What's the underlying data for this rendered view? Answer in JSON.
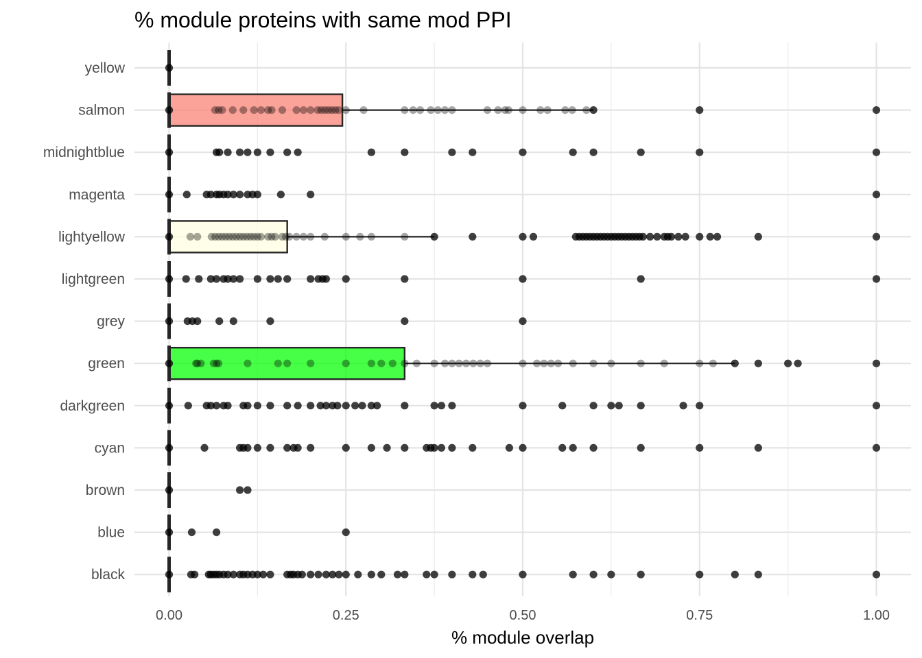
{
  "chart_data": {
    "type": "boxplot",
    "title": "% module proteins with same mod PPI",
    "xlabel": "% module overlap",
    "ylabel": "",
    "xlim": [
      0,
      1
    ],
    "x_ticks": [
      0,
      0.25,
      0.5,
      0.75,
      1
    ],
    "x_tick_labels": [
      "0.00",
      "0.25",
      "0.50",
      "0.75",
      "1.00"
    ],
    "grid": true,
    "categories_top_to_bottom": [
      "yellow",
      "salmon",
      "midnightblue",
      "magenta",
      "lightyellow",
      "lightgreen",
      "grey",
      "green",
      "darkgreen",
      "cyan",
      "brown",
      "blue",
      "black"
    ],
    "series": [
      {
        "name": "yellow",
        "fill": "#ffff00",
        "box": {
          "q1": 0,
          "median": 0,
          "q3": 0,
          "whisker_low": 0,
          "whisker_high": 0
        },
        "points": [
          0
        ]
      },
      {
        "name": "salmon",
        "fill": "#fa8072",
        "box": {
          "q1": 0,
          "median": 0,
          "q3": 0.245,
          "whisker_low": 0,
          "whisker_high": 0.6
        },
        "points": [
          0,
          0.065,
          0.07,
          0.075,
          0.09,
          0.105,
          0.12,
          0.13,
          0.14,
          0.145,
          0.16,
          0.18,
          0.19,
          0.2,
          0.21,
          0.215,
          0.22,
          0.225,
          0.23,
          0.235,
          0.24,
          0.25,
          0.275,
          0.333,
          0.345,
          0.355,
          0.37,
          0.38,
          0.39,
          0.4,
          0.45,
          0.465,
          0.475,
          0.48,
          0.5,
          0.525,
          0.535,
          0.56,
          0.57,
          0.59,
          0.6,
          0.75,
          1.0
        ]
      },
      {
        "name": "midnightblue",
        "fill": "#191970",
        "box": {
          "q1": 0,
          "median": 0,
          "q3": 0,
          "whisker_low": 0,
          "whisker_high": 0
        },
        "points": [
          0,
          0.067,
          0.071,
          0.083,
          0.1,
          0.111,
          0.125,
          0.143,
          0.167,
          0.182,
          0.286,
          0.333,
          0.4,
          0.429,
          0.5,
          0.571,
          0.6,
          0.667,
          0.75,
          1.0
        ]
      },
      {
        "name": "magenta",
        "fill": "#ff00ff",
        "box": {
          "q1": 0,
          "median": 0,
          "q3": 0,
          "whisker_low": 0,
          "whisker_high": 0
        },
        "points": [
          0,
          0.025,
          0.053,
          0.059,
          0.067,
          0.071,
          0.077,
          0.083,
          0.091,
          0.1,
          0.111,
          0.118,
          0.125,
          0.158,
          0.2,
          1.0
        ]
      },
      {
        "name": "lightyellow",
        "fill": "#ffffe0",
        "box": {
          "q1": 0,
          "median": 0,
          "q3": 0.167,
          "whisker_low": 0,
          "whisker_high": 0.375
        },
        "points": [
          0,
          0.03,
          0.04,
          0.06,
          0.065,
          0.07,
          0.075,
          0.08,
          0.085,
          0.09,
          0.095,
          0.1,
          0.105,
          0.11,
          0.115,
          0.12,
          0.125,
          0.13,
          0.14,
          0.145,
          0.15,
          0.16,
          0.165,
          0.17,
          0.18,
          0.19,
          0.2,
          0.22,
          0.25,
          0.27,
          0.286,
          0.333,
          0.375,
          0.429,
          0.5,
          0.515,
          0.575,
          0.58,
          0.585,
          0.59,
          0.595,
          0.6,
          0.605,
          0.61,
          0.615,
          0.62,
          0.625,
          0.63,
          0.635,
          0.64,
          0.645,
          0.65,
          0.655,
          0.66,
          0.665,
          0.67,
          0.68,
          0.69,
          0.7,
          0.705,
          0.71,
          0.72,
          0.73,
          0.75,
          0.765,
          0.775,
          0.833,
          1.0
        ]
      },
      {
        "name": "lightgreen",
        "fill": "#90ee90",
        "box": {
          "q1": 0,
          "median": 0,
          "q3": 0,
          "whisker_low": 0,
          "whisker_high": 0
        },
        "points": [
          0,
          0.024,
          0.042,
          0.059,
          0.067,
          0.077,
          0.083,
          0.091,
          0.1,
          0.125,
          0.143,
          0.154,
          0.167,
          0.2,
          0.211,
          0.217,
          0.222,
          0.25,
          0.333,
          0.5,
          0.667,
          1.0
        ]
      },
      {
        "name": "grey",
        "fill": "#bebebe",
        "box": {
          "q1": 0,
          "median": 0,
          "q3": 0,
          "whisker_low": 0,
          "whisker_high": 0
        },
        "points": [
          0,
          0.026,
          0.033,
          0.04,
          0.071,
          0.091,
          0.143,
          0.333,
          0.5
        ]
      },
      {
        "name": "green",
        "fill": "#00ff00",
        "box": {
          "q1": 0,
          "median": 0,
          "q3": 0.333,
          "whisker_low": 0,
          "whisker_high": 0.8
        },
        "points": [
          0,
          0.038,
          0.04,
          0.045,
          0.063,
          0.067,
          0.07,
          0.111,
          0.154,
          0.167,
          0.2,
          0.25,
          0.286,
          0.3,
          0.316,
          0.333,
          0.35,
          0.375,
          0.39,
          0.4,
          0.41,
          0.42,
          0.43,
          0.44,
          0.45,
          0.5,
          0.52,
          0.53,
          0.54,
          0.55,
          0.571,
          0.6,
          0.625,
          0.667,
          0.7,
          0.75,
          0.769,
          0.8,
          0.833,
          0.875,
          0.889,
          1.0
        ]
      },
      {
        "name": "darkgreen",
        "fill": "#006400",
        "box": {
          "q1": 0,
          "median": 0,
          "q3": 0,
          "whisker_low": 0,
          "whisker_high": 0
        },
        "points": [
          0,
          0.027,
          0.053,
          0.059,
          0.067,
          0.077,
          0.083,
          0.105,
          0.111,
          0.125,
          0.143,
          0.167,
          0.182,
          0.2,
          0.214,
          0.222,
          0.231,
          0.238,
          0.25,
          0.263,
          0.273,
          0.286,
          0.294,
          0.333,
          0.375,
          0.385,
          0.4,
          0.5,
          0.556,
          0.6,
          0.625,
          0.636,
          0.667,
          0.727,
          0.75,
          1.0
        ]
      },
      {
        "name": "cyan",
        "fill": "#00ffff",
        "box": {
          "q1": 0,
          "median": 0,
          "q3": 0,
          "whisker_low": 0,
          "whisker_high": 0
        },
        "points": [
          0,
          0.05,
          0.1,
          0.105,
          0.111,
          0.125,
          0.143,
          0.167,
          0.176,
          0.182,
          0.2,
          0.25,
          0.286,
          0.308,
          0.333,
          0.364,
          0.37,
          0.375,
          0.385,
          0.4,
          0.429,
          0.481,
          0.5,
          0.556,
          0.571,
          0.6,
          0.667,
          0.75,
          0.833,
          1.0
        ]
      },
      {
        "name": "brown",
        "fill": "#a52a2a",
        "box": {
          "q1": 0,
          "median": 0,
          "q3": 0,
          "whisker_low": 0,
          "whisker_high": 0
        },
        "points": [
          0,
          0.1,
          0.111
        ]
      },
      {
        "name": "blue",
        "fill": "#0000ff",
        "box": {
          "q1": 0,
          "median": 0,
          "q3": 0,
          "whisker_low": 0,
          "whisker_high": 0
        },
        "points": [
          0,
          0.032,
          0.067,
          0.25
        ]
      },
      {
        "name": "black",
        "fill": "#000000",
        "box": {
          "q1": 0,
          "median": 0,
          "q3": 0,
          "whisker_low": 0,
          "whisker_high": 0
        },
        "points": [
          0,
          0.031,
          0.036,
          0.056,
          0.059,
          0.063,
          0.067,
          0.071,
          0.077,
          0.083,
          0.091,
          0.1,
          0.105,
          0.111,
          0.118,
          0.125,
          0.133,
          0.143,
          0.167,
          0.172,
          0.176,
          0.182,
          0.188,
          0.2,
          0.211,
          0.222,
          0.231,
          0.24,
          0.25,
          0.267,
          0.286,
          0.3,
          0.323,
          0.333,
          0.364,
          0.375,
          0.4,
          0.429,
          0.444,
          0.5,
          0.571,
          0.6,
          0.625,
          0.667,
          0.75,
          0.8,
          0.833,
          1.0
        ]
      }
    ]
  }
}
